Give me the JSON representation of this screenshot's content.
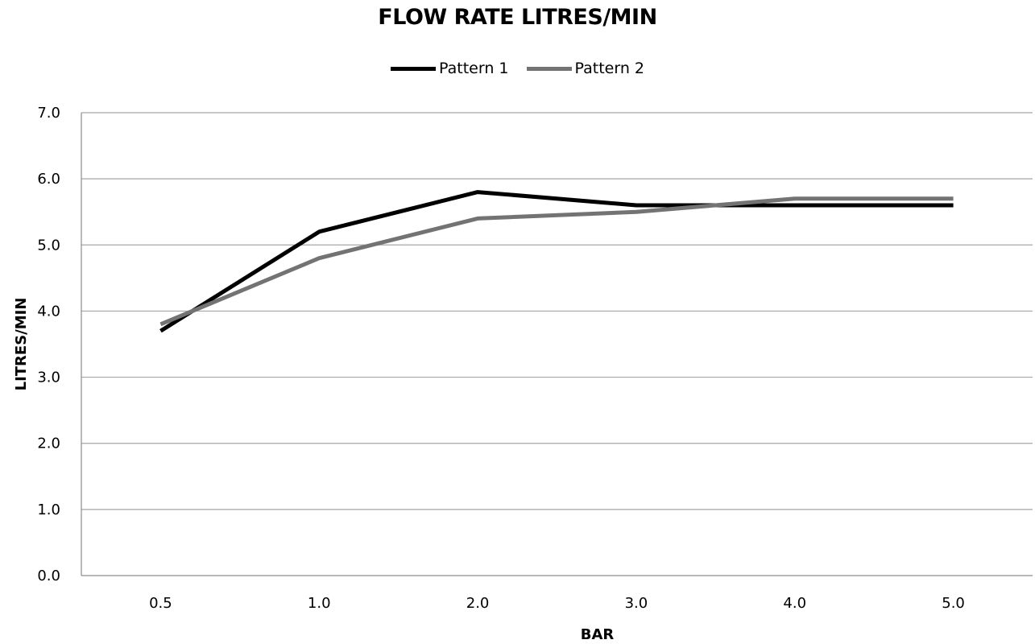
{
  "chart_data": {
    "type": "line",
    "title": "FLOW RATE LITRES/MIN",
    "xlabel": "BAR",
    "ylabel": "LITRES/MIN",
    "categories": [
      "0.5",
      "1.0",
      "2.0",
      "3.0",
      "4.0",
      "5.0"
    ],
    "y_ticks": [
      "0.0",
      "1.0",
      "2.0",
      "3.0",
      "4.0",
      "5.0",
      "6.0",
      "7.0"
    ],
    "ylim": [
      0,
      7
    ],
    "grid": "horizontal",
    "legend_position": "top-center",
    "series": [
      {
        "name": "Pattern 1",
        "color": "#000000",
        "values": [
          3.7,
          5.2,
          5.8,
          5.6,
          5.6,
          5.6
        ]
      },
      {
        "name": "Pattern 2",
        "color": "#737373",
        "values": [
          3.8,
          4.8,
          5.4,
          5.5,
          5.7,
          5.7
        ]
      }
    ]
  }
}
